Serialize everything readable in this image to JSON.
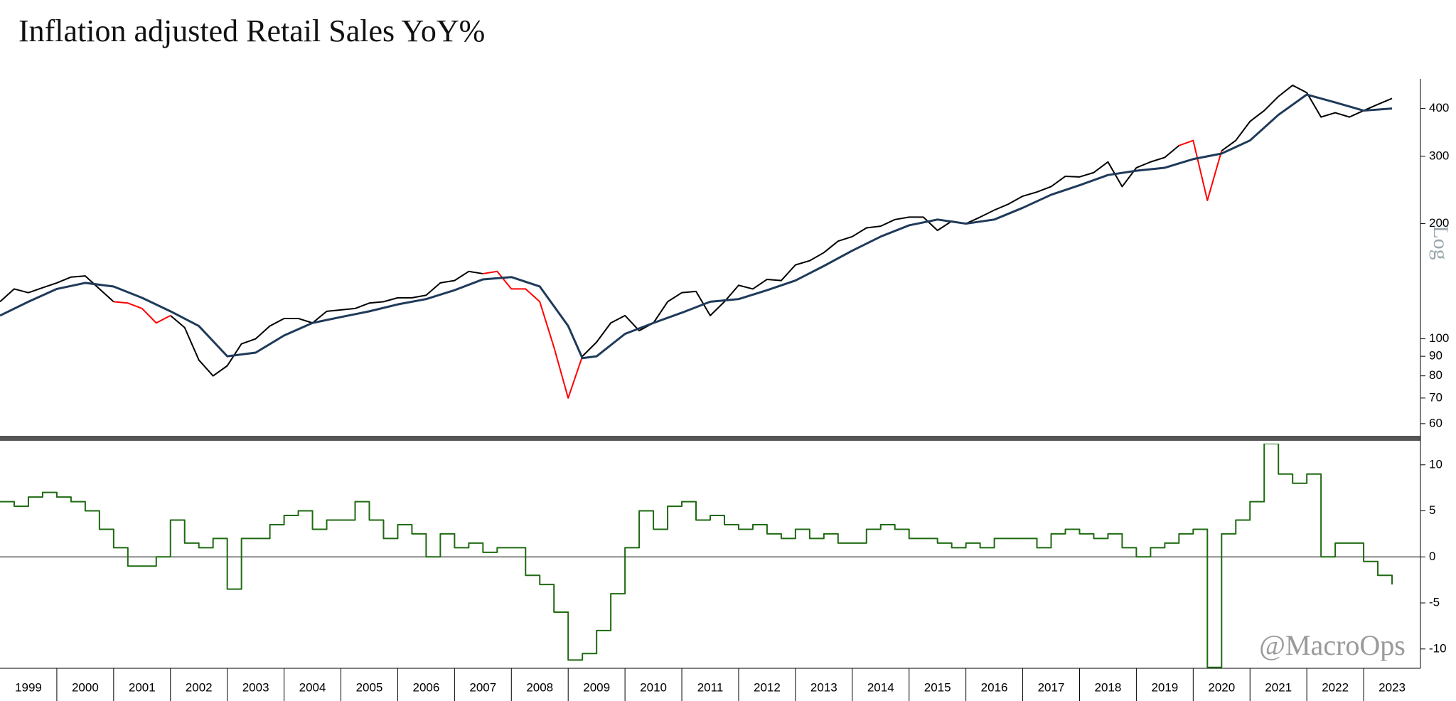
{
  "chart_data": [
    {
      "type": "line",
      "title": "Inflation adjusted Retail Sales YoY%",
      "yscale": "log",
      "y_axis_label": "Log",
      "xlim": [
        1999,
        2024
      ],
      "ylim": [
        56,
        478
      ],
      "yticks": [
        60,
        70,
        80,
        90,
        100,
        200,
        300,
        400
      ],
      "series": [
        {
          "color": "#000000",
          "x": [
            1999,
            1999.25,
            1999.5,
            1999.75,
            2000,
            2000.25,
            2000.5,
            2000.75,
            2001,
            2001.25,
            2001.5,
            2001.75,
            2002,
            2002.25,
            2002.5,
            2002.75,
            2003,
            2003.25,
            2003.5,
            2003.75,
            2004,
            2004.25,
            2004.5,
            2004.75,
            2005,
            2005.25,
            2005.5,
            2005.75,
            2006,
            2006.25,
            2006.5,
            2006.75,
            2007,
            2007.25,
            2007.5,
            2007.75,
            2008,
            2008.25,
            2008.5,
            2008.75,
            2009,
            2009.25,
            2009.5,
            2009.75,
            2010,
            2010.25,
            2010.5,
            2010.75,
            2011,
            2011.25,
            2011.5,
            2011.75,
            2012,
            2012.25,
            2012.5,
            2012.75,
            2013,
            2013.25,
            2013.5,
            2013.75,
            2014,
            2014.25,
            2014.5,
            2014.75,
            2015,
            2015.25,
            2015.5,
            2015.75,
            2016,
            2016.25,
            2016.5,
            2016.75,
            2017,
            2017.25,
            2017.5,
            2017.75,
            2018,
            2018.25,
            2018.5,
            2018.75,
            2019,
            2019.25,
            2019.5,
            2019.75,
            2020,
            2020.25,
            2020.5,
            2020.75,
            2021,
            2021.25,
            2021.5,
            2021.75,
            2022,
            2022.25,
            2022.5,
            2022.75,
            2023,
            2023.25,
            2023.5
          ],
          "values": [
            125,
            135,
            132,
            136,
            140,
            145,
            146,
            135,
            125,
            null,
            null,
            null,
            115,
            107,
            88,
            80,
            85,
            97,
            100,
            108,
            113,
            113,
            110,
            118,
            119,
            120,
            124,
            125,
            128,
            128,
            130,
            140,
            142,
            150,
            148,
            null,
            null,
            null,
            null,
            null,
            null,
            90,
            98,
            110,
            115,
            105,
            110,
            125,
            132,
            133,
            115,
            125,
            138,
            135,
            143,
            142,
            156,
            160,
            168,
            180,
            185,
            195,
            197,
            205,
            208,
            208,
            192,
            203,
            200,
            208,
            217,
            225,
            236,
            242,
            250,
            266,
            265,
            272,
            290,
            250,
            280,
            290,
            298,
            320,
            null,
            null,
            310,
            330,
            370,
            395,
            430,
            460,
            440,
            380,
            390,
            380,
            395,
            410,
            425
          ]
        },
        {
          "color": "#ff0000",
          "x": [
            1999,
            1999.25,
            1999.5,
            1999.75,
            2000,
            2000.25,
            2000.5,
            2000.75,
            2001,
            2001.25,
            2001.5,
            2001.75,
            2002,
            2002.25,
            2002.5,
            2002.75,
            2003,
            2003.25,
            2003.5,
            2003.75,
            2004,
            2004.25,
            2004.5,
            2004.75,
            2005,
            2005.25,
            2005.5,
            2005.75,
            2006,
            2006.25,
            2006.5,
            2006.75,
            2007,
            2007.25,
            2007.5,
            2007.75,
            2008,
            2008.25,
            2008.5,
            2008.75,
            2009,
            2009.25,
            2009.5,
            2009.75,
            2010,
            2010.25,
            2010.5,
            2010.75,
            2011,
            2011.25,
            2011.5,
            2011.75,
            2012,
            2012.25,
            2012.5,
            2012.75,
            2013,
            2013.25,
            2013.5,
            2013.75,
            2014,
            2014.25,
            2014.5,
            2014.75,
            2015,
            2015.25,
            2015.5,
            2015.75,
            2016,
            2016.25,
            2016.5,
            2016.75,
            2017,
            2017.25,
            2017.5,
            2017.75,
            2018,
            2018.25,
            2018.5,
            2018.75,
            2019,
            2019.25,
            2019.5,
            2019.75,
            2020,
            2020.25,
            2020.5,
            2020.75,
            2021,
            2021.25,
            2021.5,
            2021.75,
            2022,
            2022.25,
            2022.5,
            2022.75,
            2023,
            2023.25,
            2023.5
          ],
          "values": [
            null,
            null,
            null,
            null,
            null,
            null,
            null,
            null,
            125,
            124,
            120,
            110,
            115,
            null,
            null,
            null,
            null,
            null,
            null,
            null,
            null,
            null,
            null,
            null,
            null,
            null,
            null,
            null,
            null,
            null,
            null,
            null,
            null,
            null,
            148,
            150,
            135,
            135,
            125,
            95,
            70,
            90,
            null,
            null,
            null,
            null,
            null,
            null,
            null,
            null,
            null,
            null,
            null,
            null,
            null,
            null,
            null,
            null,
            null,
            null,
            null,
            null,
            null,
            null,
            null,
            null,
            null,
            null,
            null,
            null,
            null,
            null,
            null,
            null,
            null,
            null,
            null,
            null,
            null,
            null,
            null,
            null,
            null,
            320,
            330,
            230,
            310,
            null,
            null,
            null,
            null,
            null,
            null,
            null,
            null,
            null,
            null,
            null,
            null
          ]
        },
        {
          "color": "#1f3a5a",
          "x": [
            1999,
            1999.5,
            2000,
            2000.5,
            2001,
            2001.5,
            2002,
            2002.5,
            2003,
            2003.5,
            2004,
            2004.5,
            2005,
            2005.5,
            2006,
            2006.5,
            2007,
            2007.5,
            2008,
            2008.5,
            2009,
            2009.25,
            2009.5,
            2010,
            2010.5,
            2011,
            2011.5,
            2012,
            2012.5,
            2013,
            2013.5,
            2014,
            2014.5,
            2015,
            2015.5,
            2016,
            2016.5,
            2017,
            2017.5,
            2018,
            2018.5,
            2019,
            2019.5,
            2020,
            2020.5,
            2021,
            2021.5,
            2022,
            2022.5,
            2023,
            2023.5
          ],
          "values": [
            115,
            125,
            135,
            140,
            137,
            128,
            118,
            108,
            90,
            92,
            102,
            110,
            114,
            118,
            123,
            127,
            134,
            143,
            145,
            137,
            108,
            89,
            90,
            103,
            110,
            117,
            125,
            127,
            134,
            142,
            155,
            170,
            185,
            198,
            205,
            200,
            205,
            220,
            238,
            252,
            268,
            275,
            280,
            295,
            305,
            330,
            385,
            435,
            415,
            395,
            400
          ]
        }
      ]
    },
    {
      "type": "step",
      "annotation": "@MacroOps",
      "xlim": [
        1999,
        2024
      ],
      "ylim": [
        -12.1,
        12.3
      ],
      "yticks": [
        -10,
        -5,
        0,
        5,
        10
      ],
      "zero_line": true,
      "xticks": [
        2000,
        2001,
        2002,
        2003,
        2004,
        2005,
        2006,
        2007,
        2008,
        2009,
        2010,
        2011,
        2012,
        2013,
        2014,
        2015,
        2016,
        2017,
        2018,
        2019,
        2020,
        2021,
        2022,
        2023
      ],
      "x_labels": [
        1999,
        2000,
        2001,
        2002,
        2003,
        2004,
        2005,
        2006,
        2007,
        2008,
        2009,
        2010,
        2011,
        2012,
        2013,
        2014,
        2015,
        2016,
        2017,
        2018,
        2019,
        2020,
        2021,
        2022,
        2023
      ],
      "series": [
        {
          "color": "#1e6a10",
          "x": [
            1999,
            1999.25,
            1999.5,
            1999.75,
            2000,
            2000.25,
            2000.5,
            2000.75,
            2001,
            2001.25,
            2001.5,
            2001.75,
            2002,
            2002.25,
            2002.5,
            2002.75,
            2003,
            2003.25,
            2003.5,
            2003.75,
            2004,
            2004.25,
            2004.5,
            2004.75,
            2005,
            2005.25,
            2005.5,
            2005.75,
            2006,
            2006.25,
            2006.5,
            2006.75,
            2007,
            2007.25,
            2007.5,
            2007.75,
            2008,
            2008.25,
            2008.5,
            2008.75,
            2009,
            2009.25,
            2009.5,
            2009.75,
            2010,
            2010.25,
            2010.5,
            2010.75,
            2011,
            2011.25,
            2011.5,
            2011.75,
            2012,
            2012.25,
            2012.5,
            2012.75,
            2013,
            2013.25,
            2013.5,
            2013.75,
            2014,
            2014.25,
            2014.5,
            2014.75,
            2015,
            2015.25,
            2015.5,
            2015.75,
            2016,
            2016.25,
            2016.5,
            2016.75,
            2017,
            2017.25,
            2017.5,
            2017.75,
            2018,
            2018.25,
            2018.5,
            2018.75,
            2019,
            2019.25,
            2019.5,
            2019.75,
            2020,
            2020.25,
            2020.5,
            2020.75,
            2021,
            2021.25,
            2021.5,
            2021.75,
            2022,
            2022.25,
            2022.5,
            2022.75,
            2023,
            2023.25,
            2023.5
          ],
          "values": [
            6,
            5.5,
            6.5,
            7,
            6.5,
            6,
            5,
            3,
            1,
            -1,
            -1,
            0,
            4,
            1.5,
            1,
            2,
            -3.5,
            2,
            2,
            3.5,
            4.5,
            5,
            3,
            4,
            4,
            6,
            4,
            2,
            3.5,
            2.5,
            0,
            2.5,
            1,
            1.5,
            0.5,
            1,
            1,
            -2,
            -3,
            -6,
            -11.2,
            -10.5,
            -8,
            -4,
            1,
            5,
            3,
            5.5,
            6,
            4,
            4.5,
            3.5,
            3,
            3.5,
            2.5,
            2,
            3,
            2,
            2.5,
            1.5,
            1.5,
            3,
            3.5,
            3,
            2,
            2,
            1.5,
            1,
            1.5,
            1,
            2,
            2,
            2,
            1,
            2.5,
            3,
            2.5,
            2,
            2.5,
            1,
            0,
            1,
            1.5,
            2.5,
            3,
            -12,
            2.5,
            4,
            6,
            12.3,
            9,
            8,
            9,
            0,
            1.5,
            1.5,
            -0.5,
            -2,
            -3
          ]
        }
      ]
    }
  ]
}
